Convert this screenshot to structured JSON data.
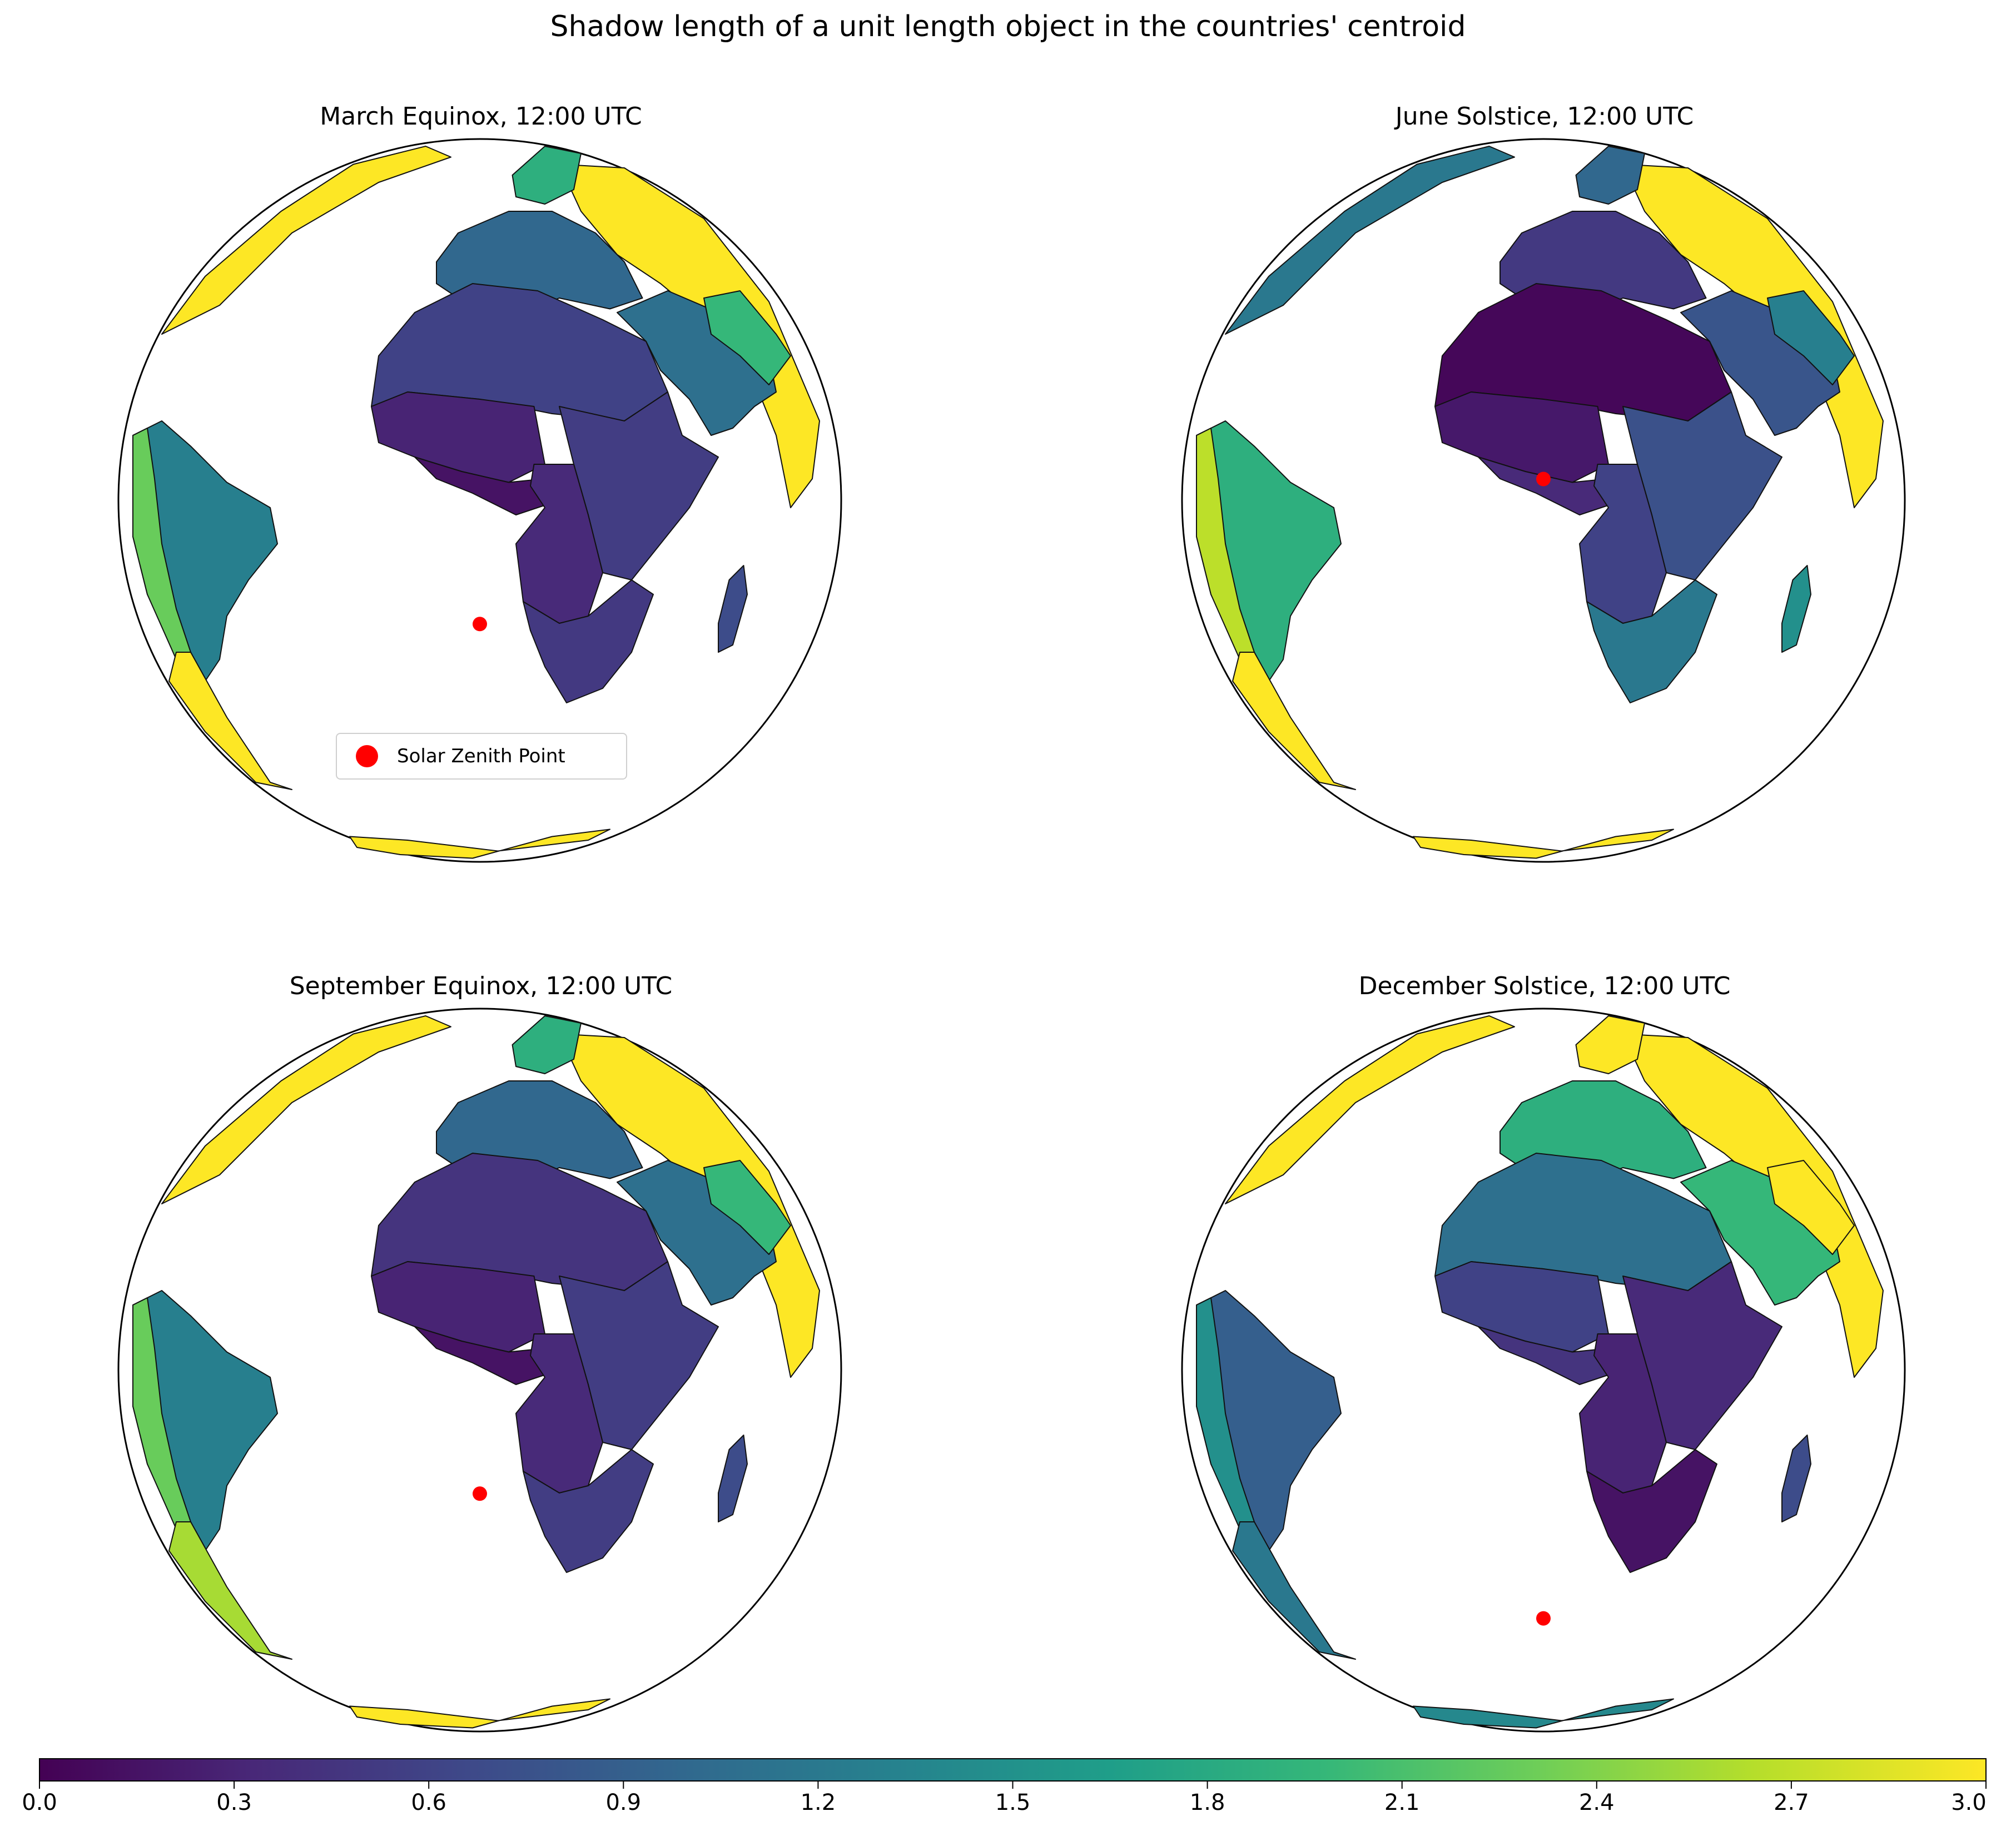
{
  "title": "Shadow length of a unit length object in the countries' centroid",
  "colors": {
    "zenith": "#ff0000",
    "viridis": [
      "#440154",
      "#482878",
      "#3e4989",
      "#31688e",
      "#26828e",
      "#1f9e89",
      "#35b779",
      "#6ece58",
      "#b5de2b",
      "#fde725"
    ]
  },
  "legend": {
    "label": "Solar Zenith Point",
    "icon": "red-dot-marker"
  },
  "panels": [
    {
      "title": "March Equinox, 12:00 UTC",
      "zenith": {
        "lat": 0.0,
        "lon": 0.0
      },
      "values": {
        "europe": 1.0,
        "scandinavia": 1.9,
        "russia": 3.0,
        "middle_east": 1.1,
        "iran": 2.0,
        "north_africa": 0.6,
        "west_africa": 0.3,
        "gulf_guinea": 0.15,
        "central_africa": 0.35,
        "east_africa": 0.55,
        "southern_africa": 0.5,
        "madagascar": 0.7,
        "greenland": 3.0,
        "south_america": 1.3,
        "andes": 2.3,
        "patagonia": 3.0,
        "antarctica": 3.0
      }
    },
    {
      "title": "June Solstice, 12:00 UTC",
      "zenith": {
        "lat": 23.4,
        "lon": 0.0
      },
      "values": {
        "europe": 0.5,
        "scandinavia": 1.0,
        "russia": 3.0,
        "middle_east": 0.8,
        "iran": 1.3,
        "north_africa": 0.05,
        "west_africa": 0.2,
        "gulf_guinea": 0.35,
        "central_africa": 0.6,
        "east_africa": 0.75,
        "southern_africa": 1.2,
        "madagascar": 1.5,
        "greenland": 1.2,
        "south_america": 1.9,
        "andes": 2.7,
        "patagonia": 3.0,
        "antarctica": 3.0
      }
    },
    {
      "title": "September Equinox, 12:00 UTC",
      "zenith": {
        "lat": 0.0,
        "lon": 0.0
      },
      "values": {
        "europe": 1.0,
        "scandinavia": 1.9,
        "russia": 3.0,
        "middle_east": 1.1,
        "iran": 2.0,
        "north_africa": 0.45,
        "west_africa": 0.3,
        "gulf_guinea": 0.15,
        "central_africa": 0.35,
        "east_africa": 0.55,
        "southern_africa": 0.55,
        "madagascar": 0.7,
        "greenland": 3.0,
        "south_america": 1.3,
        "andes": 2.3,
        "patagonia": 2.6,
        "antarctica": 3.0
      }
    },
    {
      "title": "December Solstice, 12:00 UTC",
      "zenith": {
        "lat": -23.4,
        "lon": 0.0
      },
      "values": {
        "europe": 1.9,
        "scandinavia": 3.0,
        "russia": 3.0,
        "middle_east": 2.0,
        "iran": 3.0,
        "north_africa": 1.1,
        "west_africa": 0.6,
        "gulf_guinea": 0.45,
        "central_africa": 0.3,
        "east_africa": 0.35,
        "southern_africa": 0.15,
        "madagascar": 0.7,
        "greenland": 3.0,
        "south_america": 0.9,
        "andes": 1.5,
        "patagonia": 1.2,
        "antarctica": 1.4
      }
    }
  ],
  "colorbar": {
    "min": 0.0,
    "max": 3.0,
    "tick_labels": [
      "0.0",
      "0.3",
      "0.6",
      "0.9",
      "1.2",
      "1.5",
      "1.8",
      "2.1",
      "2.4",
      "2.7",
      "3.0"
    ]
  }
}
